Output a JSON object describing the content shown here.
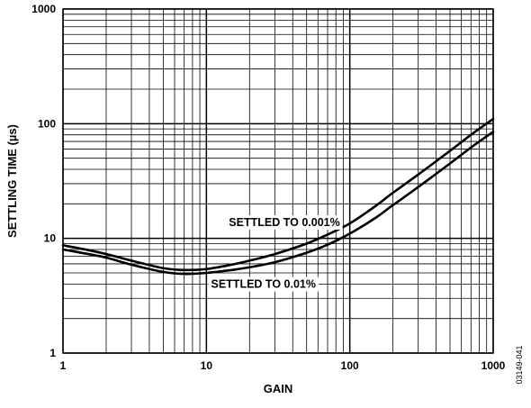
{
  "chart_data": {
    "type": "line",
    "title": "",
    "xlabel": "GAIN",
    "ylabel": "SETTLING TIME (µs)",
    "x_scale": "log",
    "y_scale": "log",
    "xlim": [
      1,
      1000
    ],
    "ylim": [
      1,
      1000
    ],
    "grid": true,
    "x_ticks": [
      {
        "value": 1,
        "label": "1"
      },
      {
        "value": 10,
        "label": "10"
      },
      {
        "value": 100,
        "label": "100"
      },
      {
        "value": 1000,
        "label": "1000"
      }
    ],
    "y_ticks": [
      {
        "value": 1,
        "label": "1"
      },
      {
        "value": 10,
        "label": "10"
      },
      {
        "value": 100,
        "label": "100"
      },
      {
        "value": 1000,
        "label": "1000"
      }
    ],
    "series": [
      {
        "name": "SETTLED TO 0.001%",
        "x": [
          1,
          1.5,
          2,
          3,
          5,
          7,
          10,
          15,
          20,
          30,
          50,
          70,
          100,
          150,
          200,
          300,
          500,
          700,
          1000
        ],
        "y": [
          8.7,
          7.9,
          7.3,
          6.4,
          5.5,
          5.3,
          5.4,
          5.9,
          6.4,
          7.3,
          9.0,
          10.8,
          13.5,
          19,
          25,
          36,
          58,
          80,
          110
        ]
      },
      {
        "name": "SETTLED TO 0.01%",
        "x": [
          1,
          1.5,
          2,
          3,
          5,
          7,
          10,
          15,
          20,
          30,
          50,
          70,
          100,
          150,
          200,
          300,
          500,
          700,
          1000
        ],
        "y": [
          8.0,
          7.3,
          6.8,
          5.9,
          5.1,
          4.9,
          5.0,
          5.3,
          5.6,
          6.2,
          7.5,
          8.8,
          11,
          15,
          19.5,
          28,
          45,
          62,
          85
        ]
      }
    ],
    "annotations": [
      {
        "text": "SETTLED TO 0.001%",
        "x": 35,
        "y": 12.8
      },
      {
        "text": "SETTLED TO 0.01%",
        "x": 25,
        "y": 3.7
      }
    ],
    "footnote": "03149-041"
  }
}
